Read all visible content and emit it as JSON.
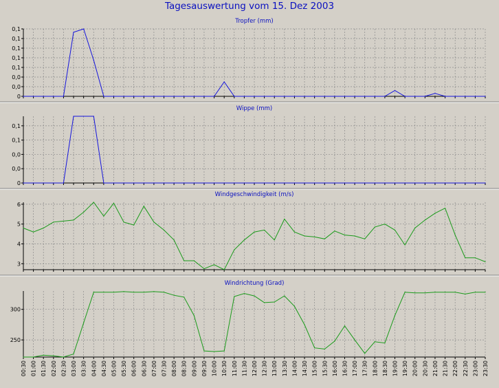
{
  "title": "Tagesauswertung vom 15. Dez 2003",
  "colors": {
    "background": "#d4d0c8",
    "title": "#0a10c0",
    "rain": "#1414dc",
    "wind": "#1a9a1a",
    "grid": "#8a8a8a"
  },
  "x_labels": [
    "00:30",
    "01:00",
    "01:30",
    "02:00",
    "02:30",
    "03:00",
    "03:30",
    "04:00",
    "04:30",
    "05:00",
    "05:30",
    "06:00",
    "06:30",
    "07:00",
    "07:30",
    "08:00",
    "08:30",
    "09:00",
    "09:30",
    "10:00",
    "10:30",
    "11:00",
    "11:30",
    "12:00",
    "12:30",
    "13:00",
    "13:30",
    "14:00",
    "14:30",
    "15:00",
    "15:30",
    "16:00",
    "16:30",
    "17:00",
    "17:30",
    "18:00",
    "18:30",
    "19:00",
    "19:30",
    "20:00",
    "20:30",
    "21:00",
    "21:30",
    "22:00",
    "22:30",
    "23:00",
    "23:30"
  ],
  "chart_data": [
    {
      "type": "line",
      "title": "Tropfer (mm)",
      "ylim": [
        0,
        0.14
      ],
      "yticks": [
        0,
        0.02,
        0.04,
        0.06,
        0.08,
        0.1,
        0.12,
        0.14
      ],
      "ytick_labels": [
        "0",
        "0,0",
        "0,0",
        "0,1",
        "0,1",
        "0,1",
        "0,1",
        "0,1"
      ],
      "grid": true,
      "series": [
        {
          "color": "#1414dc",
          "values": [
            0,
            0,
            0,
            0,
            0,
            0.133,
            0.14,
            0.075,
            0,
            0,
            0,
            0,
            0,
            0,
            0,
            0,
            0,
            0,
            0,
            0,
            0.03,
            0,
            0,
            0,
            0,
            0,
            0,
            0,
            0,
            0,
            0,
            0,
            0,
            0,
            0,
            0,
            0,
            0.012,
            0,
            0,
            0,
            0.006,
            0,
            0,
            0,
            0,
            0
          ]
        }
      ]
    },
    {
      "type": "line",
      "title": "Wippe (mm)",
      "ylim": [
        0,
        0.14
      ],
      "yticks": [
        0,
        0.03,
        0.06,
        0.09,
        0.12
      ],
      "ytick_labels": [
        "0",
        "0,0",
        "0,0",
        "0,1",
        "0,1"
      ],
      "grid": true,
      "series": [
        {
          "color": "#1414dc",
          "values": [
            0,
            0,
            0,
            0,
            0,
            0.14,
            0.14,
            0.14,
            0,
            0,
            0,
            0,
            0,
            0,
            0,
            0,
            0,
            0,
            0,
            0,
            0,
            0,
            0,
            0,
            0,
            0,
            0,
            0,
            0,
            0,
            0,
            0,
            0,
            0,
            0,
            0,
            0,
            0,
            0,
            0,
            0,
            0,
            0,
            0,
            0,
            0,
            0
          ]
        }
      ]
    },
    {
      "type": "line",
      "title": "Windgeschwindigkeit (m/s)",
      "ylim": [
        2.7,
        6.1
      ],
      "yticks": [
        3,
        4,
        5,
        6
      ],
      "ytick_labels": [
        "3",
        "4",
        "5",
        "6"
      ],
      "grid": true,
      "series": [
        {
          "color": "#1a9a1a",
          "values": [
            4.8,
            4.6,
            4.8,
            5.1,
            5.15,
            5.2,
            5.6,
            6.1,
            5.4,
            6.05,
            5.1,
            4.95,
            5.9,
            5.1,
            4.7,
            4.2,
            3.15,
            3.15,
            2.75,
            2.95,
            2.7,
            3.7,
            4.2,
            4.6,
            4.7,
            4.2,
            5.25,
            4.6,
            4.4,
            4.35,
            4.25,
            4.65,
            4.45,
            4.4,
            4.25,
            4.85,
            5.0,
            4.7,
            3.95,
            4.8,
            5.2,
            5.55,
            5.8,
            4.45,
            3.3,
            3.3,
            3.1
          ]
        }
      ]
    },
    {
      "type": "line",
      "title": "Windrichtung (Grad)",
      "ylim": [
        222,
        330
      ],
      "yticks": [
        250,
        300
      ],
      "ytick_labels": [
        "250",
        "300"
      ],
      "grid": true,
      "series": [
        {
          "color": "#1a9a1a",
          "values": [
            222,
            222,
            225,
            224,
            222,
            227,
            278,
            328,
            328,
            328,
            329,
            328,
            328,
            329,
            328,
            323,
            320,
            290,
            232,
            231,
            232,
            321,
            326,
            322,
            311,
            312,
            322,
            305,
            275,
            237,
            235,
            248,
            273,
            250,
            228,
            247,
            245,
            290,
            328,
            327,
            327,
            328,
            328,
            328,
            325,
            328,
            328
          ]
        }
      ]
    }
  ]
}
